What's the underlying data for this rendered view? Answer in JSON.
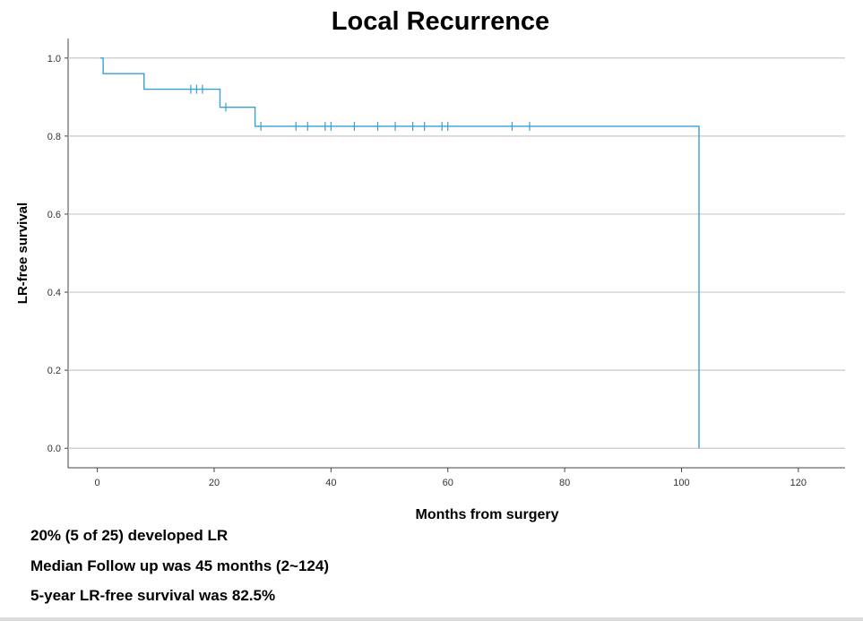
{
  "chart_data": {
    "type": "step",
    "title": "Local Recurrence",
    "xlabel": "Months from surgery",
    "ylabel": "LR-free survival",
    "xlim": [
      -5,
      128
    ],
    "ylim": [
      -0.05,
      1.05
    ],
    "xticks": [
      0,
      20,
      40,
      60,
      80,
      100,
      120
    ],
    "yticks": [
      0.0,
      0.2,
      0.4,
      0.6,
      0.8,
      1.0
    ],
    "ytick_labels": [
      "0.0",
      "0.2",
      "0.4",
      "0.6",
      "0.8",
      "1.0"
    ],
    "grid": "horizontal",
    "color": "#3a9fd6",
    "series": [
      {
        "steps": [
          {
            "x": 0.5,
            "y": 1.0
          },
          {
            "x": 1,
            "y": 0.96
          },
          {
            "x": 8,
            "y": 0.92
          },
          {
            "x": 21,
            "y": 0.874
          },
          {
            "x": 27,
            "y": 0.825
          },
          {
            "x": 103,
            "y": 0.0
          }
        ],
        "censored": [
          {
            "x": 16,
            "y": 0.92
          },
          {
            "x": 17,
            "y": 0.92
          },
          {
            "x": 18,
            "y": 0.92
          },
          {
            "x": 22,
            "y": 0.874
          },
          {
            "x": 28,
            "y": 0.825
          },
          {
            "x": 34,
            "y": 0.825
          },
          {
            "x": 36,
            "y": 0.825
          },
          {
            "x": 39,
            "y": 0.825
          },
          {
            "x": 40,
            "y": 0.825
          },
          {
            "x": 44,
            "y": 0.825
          },
          {
            "x": 48,
            "y": 0.825
          },
          {
            "x": 51,
            "y": 0.825
          },
          {
            "x": 54,
            "y": 0.825
          },
          {
            "x": 56,
            "y": 0.825
          },
          {
            "x": 59,
            "y": 0.825
          },
          {
            "x": 60,
            "y": 0.825
          },
          {
            "x": 71,
            "y": 0.825
          },
          {
            "x": 74,
            "y": 0.825
          }
        ]
      }
    ]
  },
  "notes": [
    "20% (5 of 25) developed LR",
    "Median Follow up was 45 months (2~124)",
    "5-year LR-free survival was 82.5%"
  ]
}
